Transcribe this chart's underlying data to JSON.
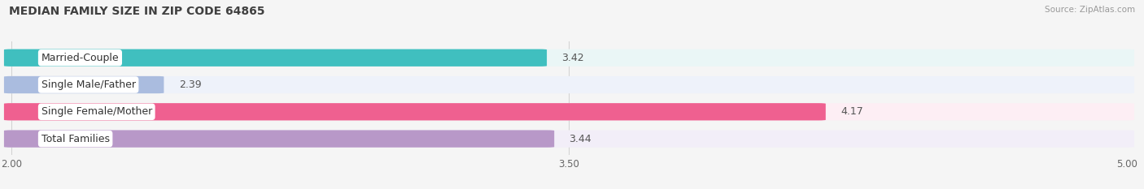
{
  "title": "MEDIAN FAMILY SIZE IN ZIP CODE 64865",
  "source": "Source: ZipAtlas.com",
  "categories": [
    "Married-Couple",
    "Single Male/Father",
    "Single Female/Mother",
    "Total Families"
  ],
  "values": [
    3.42,
    2.39,
    4.17,
    3.44
  ],
  "bar_colors": [
    "#40bfbf",
    "#aabcdf",
    "#ef6090",
    "#b898c8"
  ],
  "bar_bg_colors": [
    "#eaf6f6",
    "#eef2fa",
    "#fdeef4",
    "#f2eef8"
  ],
  "xlim": [
    2.0,
    5.0
  ],
  "xticks": [
    2.0,
    3.5,
    5.0
  ],
  "xtick_labels": [
    "2.00",
    "3.50",
    "5.00"
  ],
  "title_fontsize": 10,
  "label_fontsize": 9,
  "value_fontsize": 9,
  "bar_height": 0.6,
  "background_color": "#f5f5f5"
}
